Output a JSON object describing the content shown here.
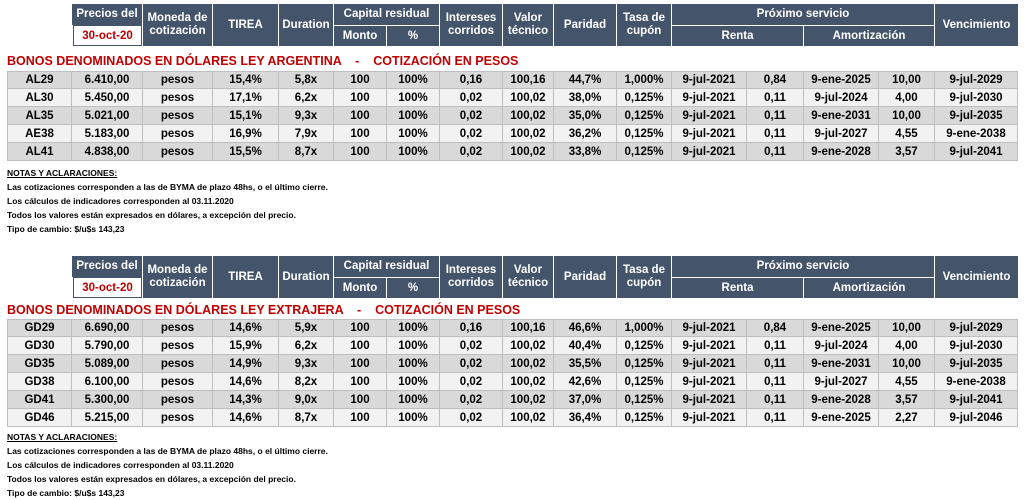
{
  "header": {
    "precios_del": "Precios del",
    "date": "30-oct-20",
    "moneda": "Moneda de cotización",
    "tirea": "TIREA",
    "duration": "Duration",
    "capital_residual": "Capital residual",
    "monto": "Monto",
    "pct": "%",
    "intereses": "Intereses corridos",
    "valor_tecnico": "Valor técnico",
    "paridad": "Paridad",
    "tasa_cupon": "Tasa de cupón",
    "proximo_servicio": "Próximo servicio",
    "renta": "Renta",
    "amortizacion": "Amortización",
    "vencimiento": "Vencimiento"
  },
  "sections": [
    {
      "title": "BONOS DENOMINADOS EN DÓLARES LEY ARGENTINA    -    COTIZACIÓN EN PESOS",
      "rows": [
        [
          "AL29",
          "6.410,00",
          "pesos",
          "15,4%",
          "5,8x",
          "100",
          "100%",
          "0,16",
          "100,16",
          "44,7%",
          "1,000%",
          "9-jul-2021",
          "0,84",
          "9-ene-2025",
          "10,00",
          "9-jul-2029"
        ],
        [
          "AL30",
          "5.450,00",
          "pesos",
          "17,1%",
          "6,2x",
          "100",
          "100%",
          "0,02",
          "100,02",
          "38,0%",
          "0,125%",
          "9-jul-2021",
          "0,11",
          "9-jul-2024",
          "4,00",
          "9-jul-2030"
        ],
        [
          "AL35",
          "5.021,00",
          "pesos",
          "15,1%",
          "9,3x",
          "100",
          "100%",
          "0,02",
          "100,02",
          "35,0%",
          "0,125%",
          "9-jul-2021",
          "0,11",
          "9-ene-2031",
          "10,00",
          "9-jul-2035"
        ],
        [
          "AE38",
          "5.183,00",
          "pesos",
          "16,9%",
          "7,9x",
          "100",
          "100%",
          "0,02",
          "100,02",
          "36,2%",
          "0,125%",
          "9-jul-2021",
          "0,11",
          "9-jul-2027",
          "4,55",
          "9-ene-2038"
        ],
        [
          "AL41",
          "4.838,00",
          "pesos",
          "15,5%",
          "8,7x",
          "100",
          "100%",
          "0,02",
          "100,02",
          "33,8%",
          "0,125%",
          "9-jul-2021",
          "0,11",
          "9-ene-2028",
          "3,57",
          "9-jul-2041"
        ]
      ],
      "notes_title": "NOTAS Y ACLARACIONES:",
      "notes": [
        "Las cotizaciones corresponden a las de BYMA de plazo 48hs, o el último cierre.",
        "Los cálculos de indicadores corresponden al 03.11.2020",
        "Todos los valores están expresados en dólares, a excepción del precio.",
        "Tipo de cambio:  $/u$s 143,23"
      ]
    },
    {
      "title": "BONOS DENOMINADOS EN DÓLARES LEY EXTRAJERA    -    COTIZACIÓN EN PESOS",
      "rows": [
        [
          "GD29",
          "6.690,00",
          "pesos",
          "14,6%",
          "5,9x",
          "100",
          "100%",
          "0,16",
          "100,16",
          "46,6%",
          "1,000%",
          "9-jul-2021",
          "0,84",
          "9-ene-2025",
          "10,00",
          "9-jul-2029"
        ],
        [
          "GD30",
          "5.790,00",
          "pesos",
          "15,9%",
          "6,2x",
          "100",
          "100%",
          "0,02",
          "100,02",
          "40,4%",
          "0,125%",
          "9-jul-2021",
          "0,11",
          "9-jul-2024",
          "4,00",
          "9-jul-2030"
        ],
        [
          "GD35",
          "5.089,00",
          "pesos",
          "14,9%",
          "9,3x",
          "100",
          "100%",
          "0,02",
          "100,02",
          "35,5%",
          "0,125%",
          "9-jul-2021",
          "0,11",
          "9-ene-2031",
          "10,00",
          "9-jul-2035"
        ],
        [
          "GD38",
          "6.100,00",
          "pesos",
          "14,6%",
          "8,2x",
          "100",
          "100%",
          "0,02",
          "100,02",
          "42,6%",
          "0,125%",
          "9-jul-2021",
          "0,11",
          "9-jul-2027",
          "4,55",
          "9-ene-2038"
        ],
        [
          "GD41",
          "5.300,00",
          "pesos",
          "14,3%",
          "9,0x",
          "100",
          "100%",
          "0,02",
          "100,02",
          "37,0%",
          "0,125%",
          "9-jul-2021",
          "0,11",
          "9-ene-2028",
          "3,57",
          "9-jul-2041"
        ],
        [
          "GD46",
          "5.215,00",
          "pesos",
          "14,6%",
          "8,7x",
          "100",
          "100%",
          "0,02",
          "100,02",
          "36,4%",
          "0,125%",
          "9-jul-2021",
          "0,11",
          "9-ene-2025",
          "2,27",
          "9-jul-2046"
        ]
      ],
      "notes_title": "NOTAS Y ACLARACIONES:",
      "notes": [
        "Las cotizaciones corresponden a las de BYMA de plazo 48hs, o el último cierre.",
        "Los cálculos de indicadores corresponden al 03.11.2020",
        "Todos los valores están expresados en dólares, a excepción del precio.",
        "Tipo de cambio:  $/u$s 143,23"
      ]
    }
  ]
}
